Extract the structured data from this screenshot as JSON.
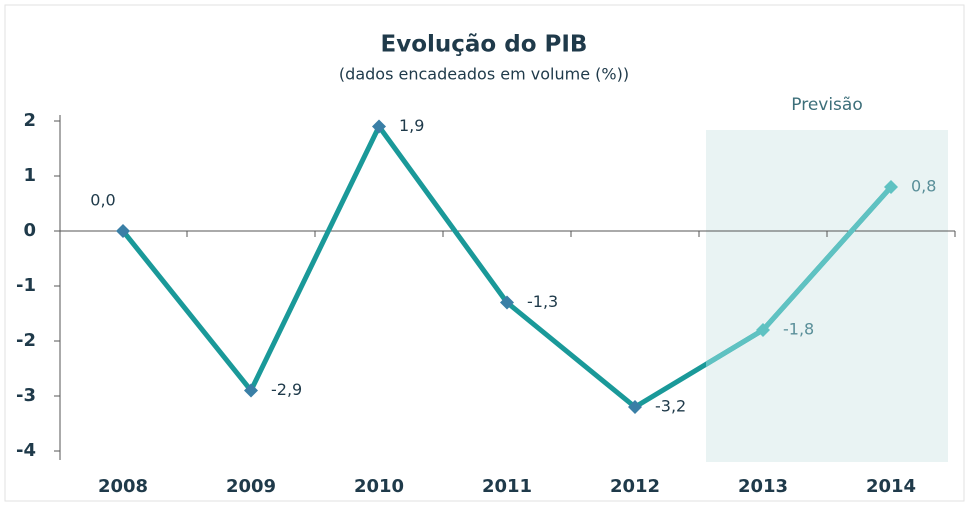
{
  "chart_data": {
    "type": "line",
    "title": "Evolução do PIB",
    "subtitle": "(dados encadeados em volume (%))",
    "annotation": "Previsão",
    "categories": [
      "2008",
      "2009",
      "2010",
      "2011",
      "2012",
      "2013",
      "2014"
    ],
    "series": [
      {
        "color": "#1a9999",
        "forecast_color": "#5fc2c2",
        "marker_color": "#3a7fa6",
        "values": [
          0.0,
          -2.9,
          1.9,
          -1.3,
          -3.2,
          -1.8,
          0.8
        ],
        "value_labels": [
          "0,0",
          "-2,9",
          "1,9",
          "-1,3",
          "-3,2",
          "-1,8",
          "0,8"
        ]
      }
    ],
    "ylim": [
      -4,
      2
    ],
    "yticks": [
      2,
      1,
      0,
      -1,
      -2,
      -3,
      -4
    ]
  }
}
